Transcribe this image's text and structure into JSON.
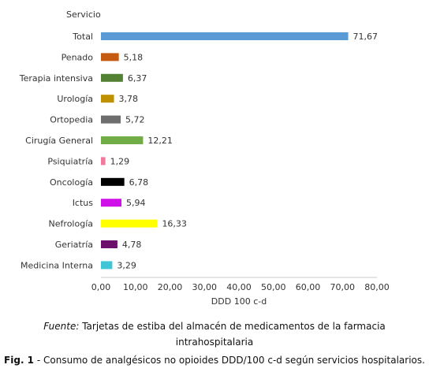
{
  "chart_data": {
    "type": "bar",
    "orientation": "horizontal",
    "category_axis_title": "Servicio",
    "xlabel": "DDD 100 c-d",
    "xlim": [
      0,
      80
    ],
    "xticks": [
      "0,00",
      "10,00",
      "20,00",
      "30,00",
      "40,00",
      "50,00",
      "60,00",
      "70,00",
      "80,00"
    ],
    "grid": false,
    "legend": "none",
    "categories": [
      "Total",
      "Penado",
      "Terapia intensiva",
      "Urología",
      "Ortopedia",
      "Cirugía General",
      "Psiquiatría",
      "Oncología",
      "Ictus",
      "Nefrología",
      "Geriatría",
      "Medicina Interna"
    ],
    "values": [
      71.67,
      5.18,
      6.37,
      3.78,
      5.72,
      12.21,
      1.29,
      6.78,
      5.94,
      16.33,
      4.78,
      3.29
    ],
    "value_labels": [
      "71,67",
      "5,18",
      "6,37",
      "3,78",
      "5,72",
      "12,21",
      "1,29",
      "6,78",
      "5,94",
      "16,33",
      "4,78",
      "3,29"
    ],
    "colors": [
      "#5B9BD5",
      "#C55A11",
      "#548235",
      "#BF9000",
      "#6E6E6E",
      "#70AD47",
      "#F4799E",
      "#000000",
      "#D010E8",
      "#FFFF00",
      "#6B0F6B",
      "#3FC5D5"
    ]
  },
  "source": {
    "prefix": "Fuente:",
    "line1": "Tarjetas de estiba del almacén de medicamentos de la farmacia",
    "line2": "intrahospitalaria"
  },
  "caption": {
    "label": "Fig. 1",
    "text": "- Consumo de analgésicos no opioides DDD/100 c-d según servicios hospitalarios."
  }
}
